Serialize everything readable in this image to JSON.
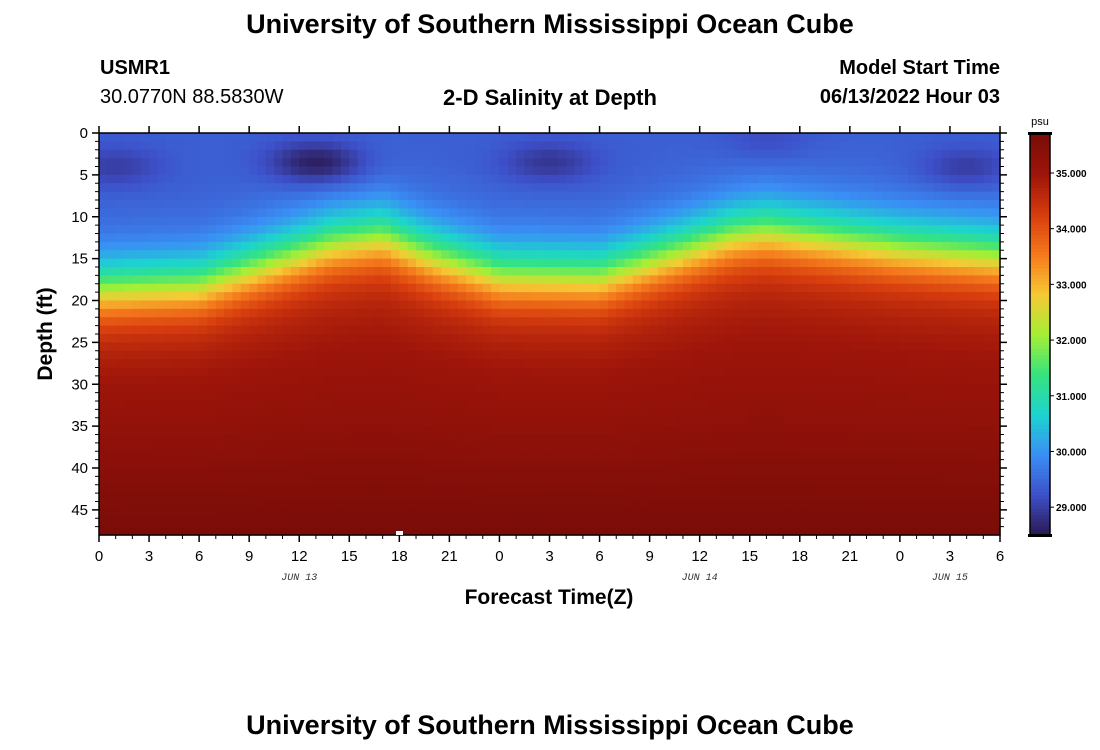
{
  "page": {
    "title_top": "University of Southern Mississippi Ocean Cube",
    "title_bottom": "University of Southern Mississippi Ocean Cube",
    "station_id": "USMR1",
    "station_coords": "30.0770N  88.5830W",
    "model_start_label": "Model Start Time",
    "model_start_value": "06/13/2022 Hour 03"
  },
  "colors": {
    "scale": [
      "#2b1850",
      "#3d4fc8",
      "#3a8ef5",
      "#1dd3d0",
      "#35e37f",
      "#a4ef35",
      "#f6c935",
      "#f57a1c",
      "#d63c0e",
      "#9e150a",
      "#7a0c08"
    ]
  },
  "chart_data": {
    "type": "heatmap",
    "title": "2-D Salinity at Depth",
    "xlabel": "Forecast Time(Z)",
    "ylabel": "Depth (ft)",
    "x_ticks": [
      "0",
      "3",
      "6",
      "9",
      "12",
      "15",
      "18",
      "21",
      "0",
      "3",
      "6",
      "9",
      "12",
      "15",
      "18",
      "21",
      "0",
      "3",
      "6"
    ],
    "x_hours_from_jun13_00": [
      0,
      3,
      6,
      9,
      12,
      15,
      18,
      21,
      24,
      27,
      30,
      33,
      36,
      39,
      42,
      45,
      48,
      51,
      54
    ],
    "date_labels": [
      {
        "label": "JUN 13",
        "hour": 12
      },
      {
        "label": "JUN 14",
        "hour": 36
      },
      {
        "label": "JUN 15",
        "hour": 51
      }
    ],
    "y_ticks": [
      0,
      5,
      10,
      15,
      20,
      25,
      30,
      35,
      40,
      45
    ],
    "y_range": [
      0,
      48
    ],
    "x_range": [
      0,
      54
    ],
    "colorbar": {
      "unit": "psu",
      "range": [
        28.5,
        35.7
      ],
      "ticks": [
        29.0,
        30.0,
        31.0,
        32.0,
        33.0,
        34.0,
        35.0
      ],
      "tick_labels": [
        "29.000",
        "30.000",
        "31.000",
        "32.000",
        "33.000",
        "34.000",
        "35.000"
      ]
    },
    "halocline_depth_ft": {
      "hours": [
        0,
        6,
        10,
        14,
        17,
        20,
        24,
        30,
        34,
        38,
        40,
        44,
        48,
        54
      ],
      "depth": [
        18.5,
        18.0,
        15.5,
        13.0,
        12.2,
        14.5,
        16.8,
        17.0,
        14.5,
        12.0,
        11.5,
        12.5,
        13.5,
        14.5
      ]
    },
    "surface_fresh_patches": [
      {
        "hour": 13,
        "depth": 3.5,
        "salinity": 28.6
      },
      {
        "hour": 27,
        "depth": 3.5,
        "salinity": 28.9
      },
      {
        "hour": 1,
        "depth": 4,
        "salinity": 29.0
      },
      {
        "hour": 52,
        "depth": 4,
        "salinity": 29.0
      },
      {
        "hour": 40,
        "depth": 0.5,
        "salinity": 29.2
      }
    ],
    "salinity_profile": {
      "surface": 29.4,
      "mid_halocline": 32.0,
      "lower_layer": 34.6,
      "bottom": 35.6
    }
  }
}
